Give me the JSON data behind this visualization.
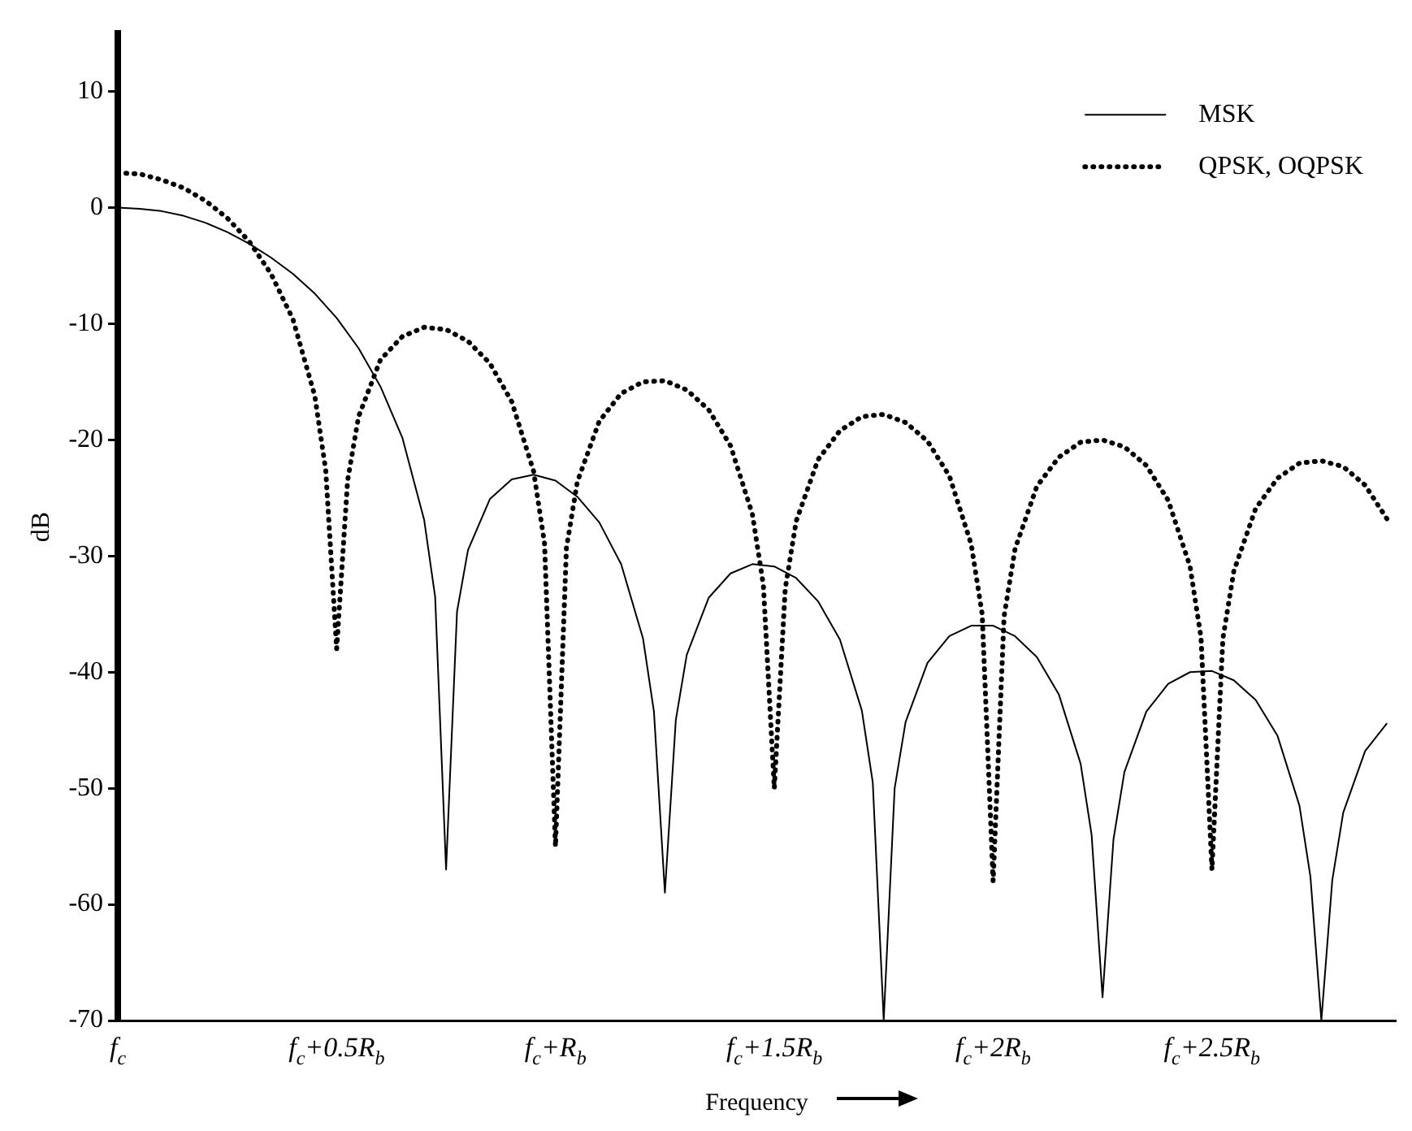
{
  "chart_data": {
    "type": "line",
    "xlabel": "Frequency",
    "ylabel": "dB",
    "xlim": [
      0,
      2.92
    ],
    "ylim": [
      -70,
      15
    ],
    "xticks": [
      {
        "value": 0,
        "label": "f$_{c}$"
      },
      {
        "value": 0.5,
        "label": "f$_{c}$+0.5R$_{b}$"
      },
      {
        "value": 1,
        "label": "f$_{c}$+R$_{b}$"
      },
      {
        "value": 1.5,
        "label": "f$_{c}$+1.5R$_{b}$"
      },
      {
        "value": 2,
        "label": "f$_{c}$+2R$_{b}$"
      },
      {
        "value": 2.5,
        "label": "f$_{c}$+2.5R$_{b}$"
      }
    ],
    "yticks": [
      -70,
      -60,
      -50,
      -40,
      -30,
      -20,
      -10,
      0,
      10
    ],
    "grid": false,
    "legend": "top right",
    "marker": "none",
    "series": [
      {
        "name": "MSK",
        "color": "#000000",
        "line_style": "solid",
        "x": [
          0,
          0.05,
          0.1,
          0.15,
          0.2,
          0.25,
          0.3,
          0.35,
          0.4,
          0.45,
          0.5,
          0.55,
          0.6,
          0.65,
          0.7,
          0.725,
          0.75,
          0.775,
          0.8,
          0.85,
          0.9,
          0.95,
          1.0,
          1.05,
          1.1,
          1.15,
          1.2,
          1.225,
          1.25,
          1.275,
          1.3,
          1.35,
          1.4,
          1.45,
          1.5,
          1.55,
          1.6,
          1.65,
          1.7,
          1.725,
          1.75,
          1.775,
          1.8,
          1.85,
          1.9,
          1.95,
          2.0,
          2.05,
          2.1,
          2.15,
          2.2,
          2.225,
          2.25,
          2.275,
          2.3,
          2.35,
          2.4,
          2.45,
          2.5,
          2.55,
          2.6,
          2.65,
          2.7,
          2.725,
          2.75,
          2.775,
          2.8,
          2.85,
          2.9
        ],
        "values": [
          0,
          -0.1,
          -0.3,
          -0.7,
          -1.3,
          -2.1,
          -3.1,
          -4.3,
          -5.7,
          -7.4,
          -9.5,
          -12.1,
          -15.4,
          -19.8,
          -26.9,
          -33.5,
          -57,
          -34.8,
          -29.5,
          -25.1,
          -23.4,
          -23.0,
          -23.5,
          -24.9,
          -27.1,
          -30.7,
          -37.1,
          -43.4,
          -59,
          -44.1,
          -38.5,
          -33.6,
          -31.5,
          -30.7,
          -30.9,
          -31.9,
          -33.9,
          -37.2,
          -43.3,
          -49.5,
          -70,
          -50.0,
          -44.3,
          -39.2,
          -36.9,
          -36.0,
          -36.0,
          -36.9,
          -38.7,
          -41.9,
          -47.9,
          -54,
          -68,
          -54.4,
          -48.6,
          -43.4,
          -41.0,
          -40.0,
          -39.9,
          -40.7,
          -42.4,
          -45.5,
          -51.5,
          -57.6,
          -70,
          -57.9,
          -52.1,
          -46.8,
          -44.4
        ]
      },
      {
        "name": "QPSK, OQPSK",
        "color": "#000000",
        "line_style": "dotted",
        "x": [
          0,
          0.05,
          0.1,
          0.15,
          0.2,
          0.25,
          0.3,
          0.35,
          0.4,
          0.45,
          0.475,
          0.5,
          0.525,
          0.55,
          0.6,
          0.65,
          0.7,
          0.75,
          0.8,
          0.85,
          0.9,
          0.95,
          0.975,
          1.0,
          1.025,
          1.05,
          1.1,
          1.15,
          1.2,
          1.25,
          1.3,
          1.35,
          1.4,
          1.45,
          1.475,
          1.5,
          1.525,
          1.55,
          1.6,
          1.65,
          1.7,
          1.75,
          1.8,
          1.85,
          1.9,
          1.95,
          1.975,
          2.0,
          2.025,
          2.05,
          2.1,
          2.15,
          2.2,
          2.25,
          2.3,
          2.35,
          2.4,
          2.45,
          2.475,
          2.5,
          2.525,
          2.55,
          2.6,
          2.65,
          2.7,
          2.75,
          2.8,
          2.85,
          2.9
        ],
        "values": [
          3.0,
          2.9,
          2.4,
          1.7,
          0.6,
          -0.9,
          -2.9,
          -5.7,
          -9.6,
          -16.2,
          -22.6,
          -38,
          -23.5,
          -18.0,
          -13.1,
          -11.1,
          -10.3,
          -10.5,
          -11.5,
          -13.4,
          -16.7,
          -22.7,
          -28.9,
          -55,
          -29.3,
          -23.6,
          -18.4,
          -16.0,
          -15.0,
          -14.9,
          -15.7,
          -17.4,
          -20.5,
          -26.4,
          -32.5,
          -50,
          -32.8,
          -27.0,
          -21.7,
          -19.2,
          -18.0,
          -17.8,
          -18.5,
          -20.1,
          -23.1,
          -29.0,
          -35.0,
          -58,
          -35.2,
          -29.4,
          -24.0,
          -21.5,
          -20.2,
          -20.0,
          -20.6,
          -22.2,
          -25.2,
          -30.9,
          -37,
          -57,
          -37.1,
          -31.3,
          -25.9,
          -23.3,
          -22.0,
          -21.8,
          -22.3,
          -23.9,
          -26.8
        ]
      }
    ]
  }
}
